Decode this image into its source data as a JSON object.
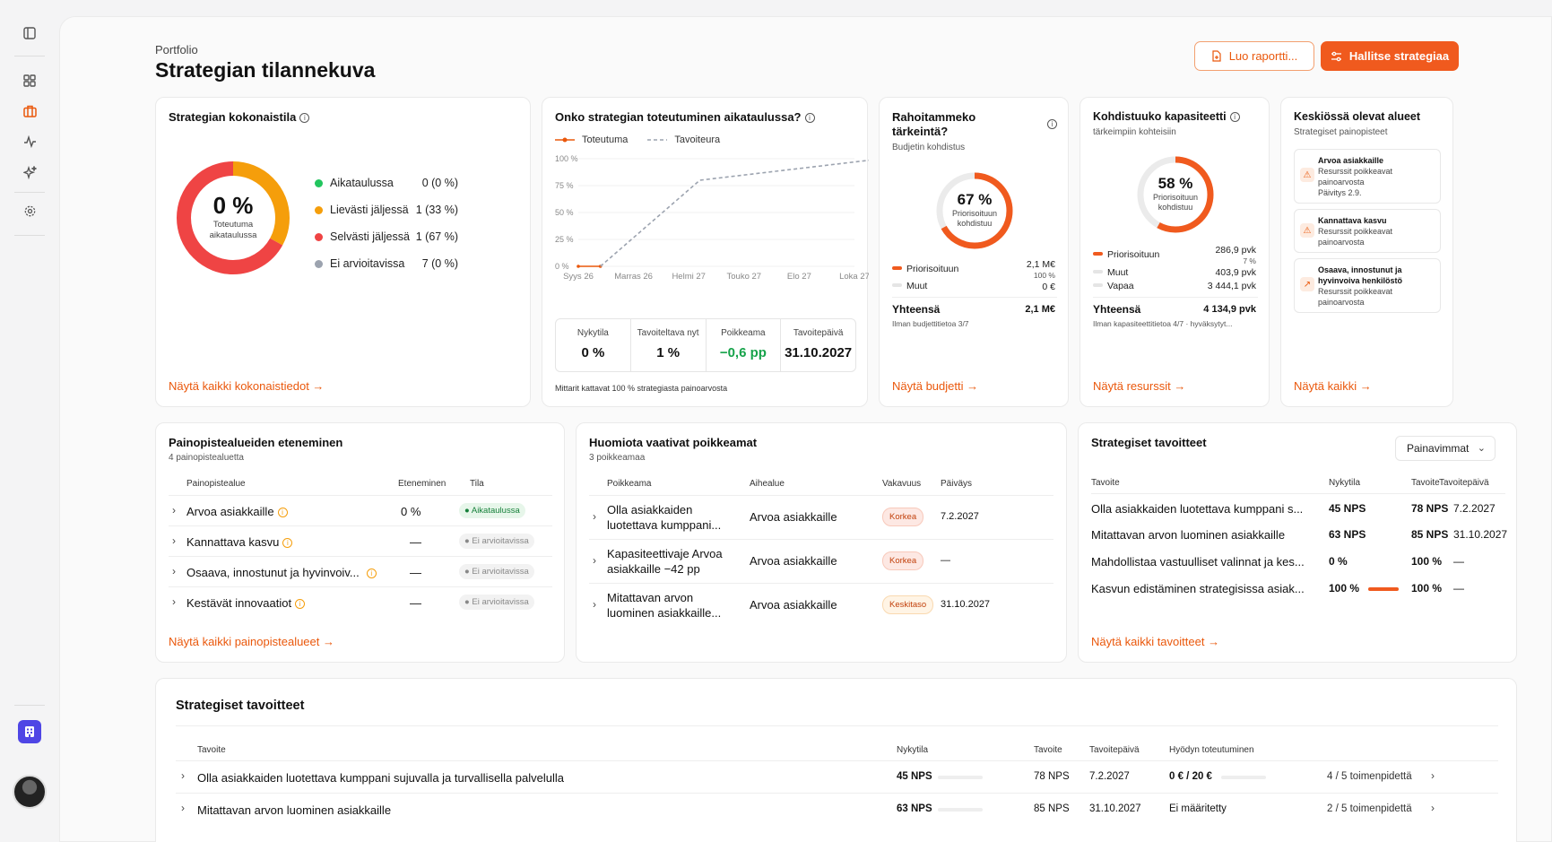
{
  "header": {
    "breadcrumb": "Portfolio",
    "title": "Strategian tilannekuva",
    "report_button": "Luo raportti...",
    "strategy_button": "Hallitse strategiaa"
  },
  "overall": {
    "title": "Strategian kokonaistila",
    "donut_value": "0 %",
    "donut_caption_1": "Toteutuma",
    "donut_caption_2": "aikataulussa",
    "legend": [
      {
        "label": "Aikataulussa",
        "value": "0 (0 %)",
        "color": "#22c55e"
      },
      {
        "label": "Lievästi jäljessä",
        "value": "1 (33 %)",
        "color": "#f59e0b"
      },
      {
        "label": "Selvästi jäljessä",
        "value": "1 (67 %)",
        "color": "#ef4444"
      },
      {
        "label": "Ei arvioitavissa",
        "value": "7 (0 %)",
        "color": "#9ca3af"
      }
    ],
    "shares": {
      "orange": 0.33,
      "red": 0.67
    },
    "link": "Näytä kaikki kokonaistiedot"
  },
  "schedule": {
    "title": "Onko strategian toteutuminen aikataulussa?",
    "legend_actual": "Toteutuma",
    "legend_target": "Tavoiteura",
    "metrics": [
      {
        "label": "Nykytila",
        "value": "0 %",
        "color": "#111111"
      },
      {
        "label": "Tavoiteltava nyt",
        "value": "1 %",
        "color": "#111111"
      },
      {
        "label": "Poikkeama",
        "value": "−0,6 pp",
        "color": "#16a34a"
      },
      {
        "label": "Tavoitepäivä",
        "value": "31.10.2027",
        "color": "#111111"
      }
    ],
    "footnote": "Mittarit kattavat 100 % strategiasta painoarvosta"
  },
  "chart_data": {
    "type": "line",
    "x": [
      "Syys 26",
      "Marras 26",
      "Helmi 27",
      "Touko 27",
      "Elo 27",
      "Loka 27"
    ],
    "yticks": [
      "100 %",
      "75 %",
      "50 %",
      "25 %",
      "0 %"
    ],
    "ylim": [
      0,
      100
    ],
    "series": [
      {
        "name": "Toteutuma",
        "color": "#ea580c",
        "points": [
          [
            0,
            0
          ],
          [
            0.4,
            0
          ]
        ]
      },
      {
        "name": "Tavoiteura",
        "color": "#9ca3af",
        "points": [
          [
            0.4,
            0
          ],
          [
            2.2,
            80
          ],
          [
            5.5,
            100
          ]
        ]
      }
    ]
  },
  "budget": {
    "title_1": "Rahoitammeko",
    "title_2": "tärkeintä?",
    "subtitle": "Budjetin kohdistus",
    "donut_value": "67 %",
    "donut_caption_1": "Priorisoituun",
    "donut_caption_2": "kohdistuu",
    "share": 0.67,
    "rows": [
      {
        "label": "Priorisoituun",
        "value": "2,1 M€",
        "sub": "100 %"
      },
      {
        "label": "Muut",
        "value": "0 €"
      }
    ],
    "total_label": "Yhteensä",
    "total_value": "2,1 M€",
    "note": "Ilman budjettitietoa 3/7",
    "link": "Näytä budjetti"
  },
  "capacity": {
    "title": "Kohdistuuko kapasiteetti",
    "subtitle": "tärkeimpiin kohteisiin",
    "donut_value": "58 %",
    "donut_caption_1": "Priorisoituun",
    "donut_caption_2": "kohdistuu",
    "share": 0.58,
    "rows": [
      {
        "label": "Priorisoituun",
        "value": "286,9 pvk",
        "sub": "7 %"
      },
      {
        "label": "Muut",
        "value": "403,9 pvk"
      },
      {
        "label": "Vapaa",
        "value": "3 444,1 pvk"
      }
    ],
    "total_label": "Yhteensä",
    "total_value": "4 134,9 pvk",
    "note": "Ilman kapasiteettitietoa 4/7 · hyväksytyt...",
    "link": "Näytä resurssit"
  },
  "focus": {
    "title": "Keskiössä olevat alueet",
    "subtitle": "Strategiset painopisteet",
    "items": [
      {
        "title": "Arvoa asiakkaille",
        "line1": "Resurssit poikkeavat",
        "line2": "painoarvosta",
        "line3": "Päivitys 2.9."
      },
      {
        "title": "Kannattava kasvu",
        "line1": "Resurssit poikkeavat",
        "line2": "painoarvosta",
        "line3": ""
      },
      {
        "title": "Osaava, innostunut ja hyvinvoiva henkilöstö",
        "line1": "Resurssit poikkeavat",
        "line2": "painoarvosta",
        "line3": ""
      }
    ],
    "link": "Näytä kaikki"
  },
  "focus_progress": {
    "title": "Painopistealueiden eteneminen",
    "subtitle": "4 painopistealuetta",
    "columns": [
      "Painopistealue",
      "Eteneminen",
      "Tila"
    ],
    "rows": [
      {
        "name": "Arvoa asiakkaille",
        "progress": "0 %",
        "status": "Aikataulussa",
        "kind": "green"
      },
      {
        "name": "Kannattava kasvu",
        "progress": "—",
        "status": "Ei arvioitavissa",
        "kind": "gray"
      },
      {
        "name": "Osaava, innostunut ja hyvinvoiv...",
        "progress": "—",
        "status": "Ei arvioitavissa",
        "kind": "gray"
      },
      {
        "name": "Kestävät innovaatiot",
        "progress": "—",
        "status": "Ei arvioitavissa",
        "kind": "gray"
      }
    ],
    "link": "Näytä kaikki painopistealueet"
  },
  "deviations": {
    "title": "Huomiota vaativat poikkeamat",
    "subtitle": "3 poikkeamaa",
    "columns": [
      "Poikkeama",
      "Aihealue",
      "Vakavuus",
      "Päiväys"
    ],
    "rows": [
      {
        "line1": "Olla asiakkaiden",
        "line2": "luotettava kumppani...",
        "area": "Arvoa asiakkaille",
        "severity": "Korkea",
        "kind": "red",
        "date": "7.2.2027"
      },
      {
        "line1": "Kapasiteettivaje Arvoa",
        "line2": "asiakkaille −42 pp",
        "area": "Arvoa asiakkaille",
        "severity": "Korkea",
        "kind": "red",
        "date": "—"
      },
      {
        "line1": "Mitattavan arvon",
        "line2": "luominen asiakkaille...",
        "area": "Arvoa asiakkaille",
        "severity": "Keskitaso",
        "kind": "amber",
        "date": "31.10.2027"
      }
    ]
  },
  "goals_card": {
    "title": "Strategiset tavoitteet",
    "select_value": "Painavimmat",
    "columns": [
      "Tavoite",
      "Nykytila",
      "Tavoite",
      "Tavoitepäivä"
    ],
    "rows": [
      {
        "name": "Olla asiakkaiden luotettava kumppani s...",
        "current": "45 NPS",
        "target": "78 NPS",
        "date": "7.2.2027",
        "progress": 0
      },
      {
        "name": "Mitattavan arvon luominen asiakkaille",
        "current": "63 NPS",
        "target": "85 NPS",
        "date": "31.10.2027",
        "progress": 0
      },
      {
        "name": "Mahdollistaa vastuulliset valinnat ja kes...",
        "current": "0 %",
        "target": "100 %",
        "date": "—",
        "progress": 0
      },
      {
        "name": "Kasvun edistäminen strategisissa asiak...",
        "current": "100 %",
        "target": "100 %",
        "date": "—",
        "progress": 1
      }
    ],
    "link": "Näytä kaikki tavoitteet"
  },
  "goals_table": {
    "title": "Strategiset tavoitteet",
    "columns": [
      "Tavoite",
      "Nykytila",
      "Tavoite",
      "Tavoitepäivä",
      "Hyödyn toteutuminen"
    ],
    "rows": [
      {
        "name": "Olla asiakkaiden luotettava kumppani sujuvalla ja turvallisella palvelulla",
        "current": "45 NPS",
        "target": "78 NPS",
        "date": "7.2.2027",
        "benefit": "0 € / 20 €",
        "actions": "4 / 5 toimenpidettä"
      },
      {
        "name": "Mitattavan arvon luominen asiakkaille",
        "current": "63 NPS",
        "target": "85 NPS",
        "date": "31.10.2027",
        "benefit": "Ei määritetty",
        "actions": "2 / 5 toimenpidettä"
      }
    ]
  }
}
